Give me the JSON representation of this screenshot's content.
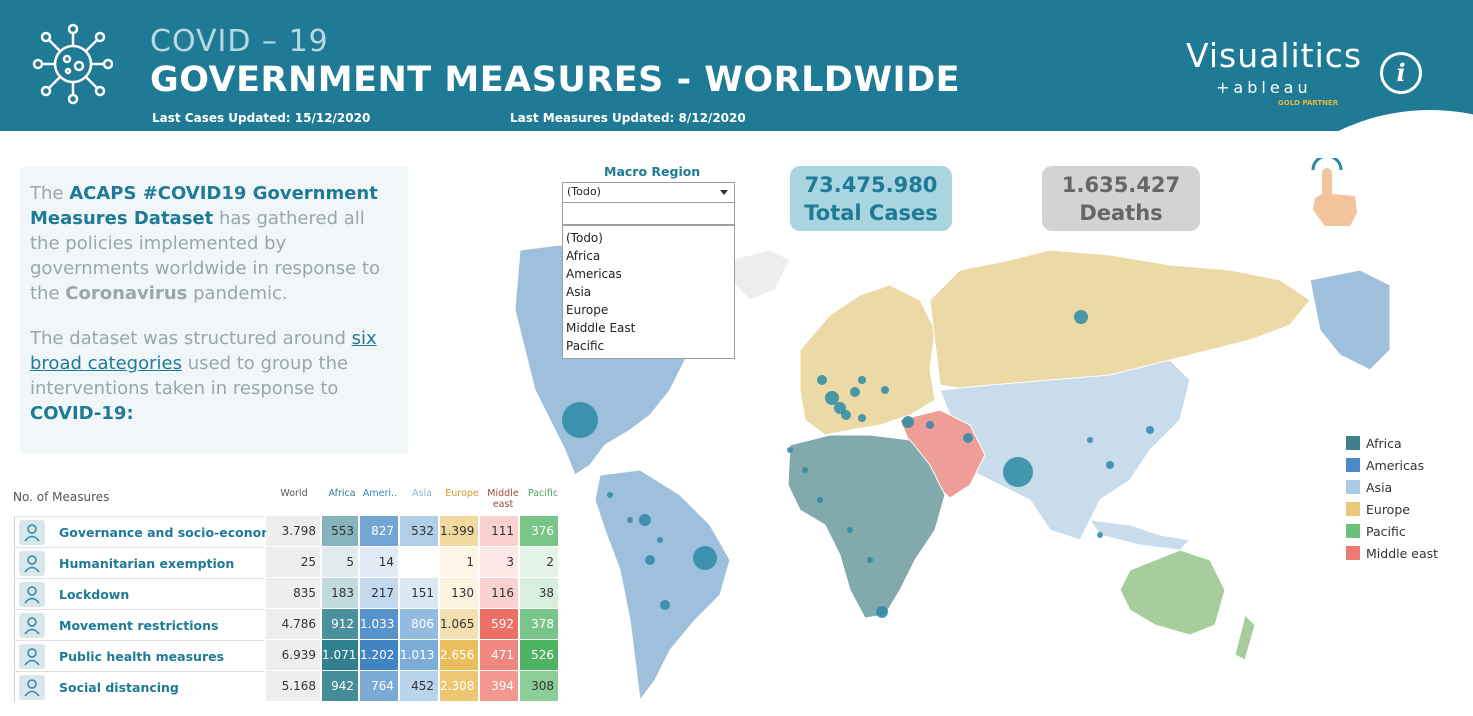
{
  "header": {
    "title_small": "COVID – 19",
    "title_big": "GOVERNMENT MEASURES - WORLDWIDE",
    "cases_updated": "Last Cases Updated: 15/12/2020",
    "measures_updated": "Last Measures Updated: 8/12/2020",
    "brand": "Visualitics",
    "brand_sub": "+ableau",
    "brand_gold": "GOLD PARTNER",
    "info_glyph": "i"
  },
  "intro": {
    "p1_a": "The ",
    "p1_hl1": "ACAPS #COVID19 Government Measures Dataset",
    "p1_b": "  has gathered all the policies implemented by governments worldwide in response to the ",
    "p1_hl2": "Coronavirus",
    "p1_c": " pandemic.",
    "p2_a": "The dataset was structured around ",
    "p2_link": "six broad categories",
    "p2_b": " used to group the interventions taken in response to ",
    "p2_hl": "COVID-19:"
  },
  "table": {
    "title": "No. of Measures",
    "columns": [
      {
        "label": "World",
        "color": "#555555"
      },
      {
        "label": "Africa",
        "color": "#2c7d91"
      },
      {
        "label": "Ameri..",
        "color": "#3a7fc0"
      },
      {
        "label": "Asia",
        "color": "#8ab6d6"
      },
      {
        "label": "Europe",
        "color": "#d49a2a"
      },
      {
        "label": "Middle east",
        "color": "#9c4a3c"
      },
      {
        "label": "Pacific",
        "color": "#4aa35f"
      }
    ],
    "rows": [
      {
        "label": "Governance and socio-economic",
        "icon": "governance-icon",
        "values": [
          "3.798",
          "553",
          "827",
          "532",
          "1.399",
          "111",
          "376"
        ]
      },
      {
        "label": "Humanitarian exemption",
        "icon": "humanitarian-icon",
        "values": [
          "25",
          "5",
          "14",
          "",
          "1",
          "3",
          "2"
        ]
      },
      {
        "label": "Lockdown",
        "icon": "lock-icon",
        "values": [
          "835",
          "183",
          "217",
          "151",
          "130",
          "116",
          "38"
        ]
      },
      {
        "label": "Movement restrictions",
        "icon": "no-walking-icon",
        "values": [
          "4.786",
          "912",
          "1.033",
          "806",
          "1.065",
          "592",
          "378"
        ]
      },
      {
        "label": "Public health measures",
        "icon": "health-person-icon",
        "values": [
          "6.939",
          "1.071",
          "1.202",
          "1.013",
          "2.656",
          "471",
          "526"
        ]
      },
      {
        "label": "Social distancing",
        "icon": "distancing-icon",
        "values": [
          "5.168",
          "942",
          "764",
          "452",
          "2.308",
          "394",
          "308"
        ]
      }
    ]
  },
  "filter": {
    "label": "Macro Region",
    "selected": "(Todo)",
    "options": [
      "(Todo)",
      "Africa",
      "Americas",
      "Asia",
      "Europe",
      "Middle East",
      "Pacific"
    ]
  },
  "kpis": {
    "cases_value": "73.475.980",
    "cases_label": "Total Cases",
    "deaths_value": "1.635.427",
    "deaths_label": "Deaths"
  },
  "legend": [
    {
      "label": "Africa",
      "color": "#3f7f8c"
    },
    {
      "label": "Americas",
      "color": "#4a8ac6"
    },
    {
      "label": "Asia",
      "color": "#a9cbe6"
    },
    {
      "label": "Europe",
      "color": "#e9c977"
    },
    {
      "label": "Pacific",
      "color": "#6cc07a"
    },
    {
      "label": "Middle east",
      "color": "#ec7a72"
    }
  ],
  "map_colors": {
    "americas": "#9fc0dc",
    "africa": "#82a9ac",
    "europe": "#ebd9a6",
    "asia": "#c8dcec",
    "middle_east": "#ef9e97",
    "pacific": "#a8cd9c",
    "bubble": "#2b8aa6"
  }
}
